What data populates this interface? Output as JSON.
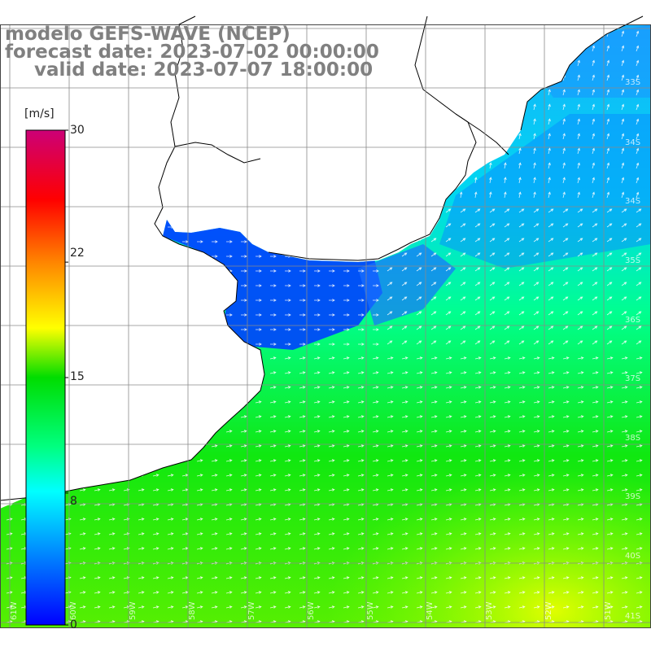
{
  "title": {
    "line1": "modelo GEFS-WAVE (NCEP)",
    "line2": "forecast date: 2023-07-02 00:00:00",
    "line3": "valid date: 2023-07-07 18:00:00"
  },
  "colorbar": {
    "unit": "[m/s]",
    "ticks": [
      "30",
      "22",
      "15",
      "8",
      "0"
    ],
    "tick_values": [
      30,
      22,
      15,
      8,
      0
    ],
    "range": [
      0,
      30
    ],
    "colors": [
      "#0000ff",
      "#00b0ff",
      "#00ffff",
      "#00e060",
      "#00dd00",
      "#ffff00",
      "#ff8800",
      "#ff0000",
      "#cc0077"
    ]
  },
  "grid": {
    "lat_labels": [
      "33S",
      "34S",
      "35S",
      "36S",
      "37S",
      "38S",
      "39S",
      "40S",
      "41S"
    ],
    "lon_labels": [
      "61W",
      "60W",
      "59W",
      "58W",
      "57W",
      "56W",
      "55W",
      "54W",
      "53W",
      "52W",
      "51W"
    ]
  },
  "map": {
    "region": "Rio de la Plata / South Atlantic",
    "wind_speed_field": "wind speed with direction arrows",
    "water_color_low": "#0044ff",
    "water_color_high": "#00dd00",
    "land_color": "#ffffff",
    "coast_color": "#000000"
  }
}
